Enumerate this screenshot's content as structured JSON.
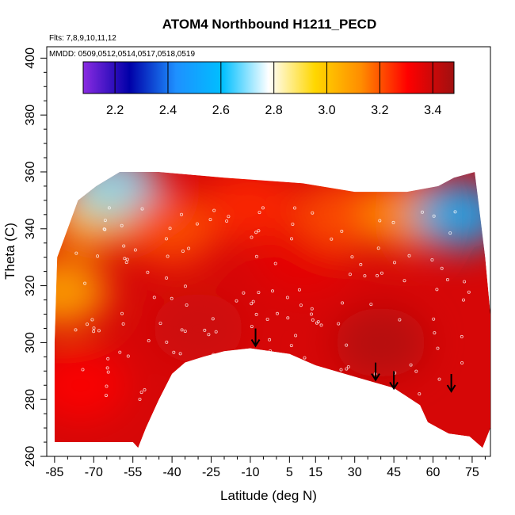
{
  "chart_data": {
    "type": "heatmap",
    "title": "ATOM4 Northbound H1211_PECD",
    "xlabel": "Latitude (deg N)",
    "ylabel": "Theta (C)",
    "flights_note": "Flts: 7,8,9,10,11,12",
    "dates_note": "MMDD: 0509,0512,0514,0517,0518,0519",
    "x_ticks": [
      -85,
      -70,
      -55,
      -40,
      -25,
      -10,
      5,
      15,
      30,
      45,
      60,
      75
    ],
    "y_ticks": [
      260,
      280,
      300,
      320,
      340,
      360,
      380,
      400
    ],
    "xlim": [
      -88,
      82
    ],
    "ylim": [
      260,
      404
    ],
    "colorbar": {
      "ticks": [
        2.2,
        2.4,
        2.6,
        2.8,
        3.0,
        3.2,
        3.4
      ],
      "range": [
        2.08,
        3.48
      ],
      "colors": [
        "#8a2be2",
        "#0000a8",
        "#1e90ff",
        "#00bfff",
        "#ffffff",
        "#ffd700",
        "#ff8c00",
        "#ff0000",
        "#a01010"
      ]
    },
    "region_outline": [
      [
        -85,
        265
      ],
      [
        -85,
        300
      ],
      [
        -84,
        330
      ],
      [
        -80,
        340
      ],
      [
        -76,
        350
      ],
      [
        -69,
        355
      ],
      [
        -60,
        360
      ],
      [
        -45,
        360
      ],
      [
        -20,
        358
      ],
      [
        10,
        356
      ],
      [
        30,
        353
      ],
      [
        50,
        353
      ],
      [
        62,
        355
      ],
      [
        68,
        358
      ],
      [
        76,
        360
      ],
      [
        80,
        330
      ],
      [
        82,
        310
      ],
      [
        82,
        270
      ],
      [
        79,
        263
      ],
      [
        74,
        267
      ],
      [
        66,
        268
      ],
      [
        62,
        270
      ],
      [
        58,
        272
      ],
      [
        55,
        278
      ],
      [
        45,
        284
      ],
      [
        30,
        288
      ],
      [
        15,
        292
      ],
      [
        5,
        296
      ],
      [
        -10,
        298
      ],
      [
        -20,
        297
      ],
      [
        -28,
        295
      ],
      [
        -35,
        293
      ],
      [
        -40,
        289
      ],
      [
        -45,
        280
      ],
      [
        -50,
        270
      ],
      [
        -53,
        263
      ],
      [
        -55,
        265
      ],
      [
        -75,
        265
      ]
    ],
    "value_field": [
      {
        "x": -82,
        "y": 318,
        "v": 3.05
      },
      {
        "x": -70,
        "y": 345,
        "v": 3.0
      },
      {
        "x": -62,
        "y": 355,
        "v": 2.7
      },
      {
        "x": -40,
        "y": 340,
        "v": 3.2
      },
      {
        "x": -10,
        "y": 348,
        "v": 3.25
      },
      {
        "x": 10,
        "y": 330,
        "v": 3.35
      },
      {
        "x": 25,
        "y": 345,
        "v": 3.2
      },
      {
        "x": 50,
        "y": 345,
        "v": 3.1
      },
      {
        "x": 70,
        "y": 345,
        "v": 2.55
      },
      {
        "x": 40,
        "y": 300,
        "v": 3.45
      },
      {
        "x": -30,
        "y": 305,
        "v": 3.4
      },
      {
        "x": -75,
        "y": 285,
        "v": 3.3
      }
    ],
    "arrows": [
      {
        "lat": -8,
        "theta": 298
      },
      {
        "lat": 38,
        "theta": 286
      },
      {
        "lat": 45,
        "theta": 283
      },
      {
        "lat": 67,
        "theta": 282
      }
    ]
  }
}
